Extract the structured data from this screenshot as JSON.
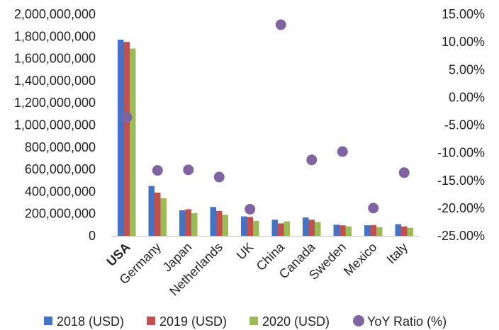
{
  "chart_data": {
    "type": "bar",
    "categories": [
      "USA",
      "Germany",
      "Japan",
      "Netherlands",
      "UK",
      "China",
      "Canada",
      "Sweden",
      "Mexico",
      "Italy"
    ],
    "series": [
      {
        "name": "2018 (USD)",
        "axis": "left",
        "kind": "bar",
        "color": "#4472C4",
        "values": [
          1770000000,
          450000000,
          230000000,
          260000000,
          175000000,
          145000000,
          165000000,
          100000000,
          95000000,
          105000000
        ]
      },
      {
        "name": "2019 (USD)",
        "axis": "left",
        "kind": "bar",
        "color": "#C0504D",
        "values": [
          1750000000,
          390000000,
          240000000,
          225000000,
          170000000,
          112000000,
          145000000,
          95000000,
          97000000,
          85000000
        ]
      },
      {
        "name": "2020 (USD)",
        "axis": "left",
        "kind": "bar",
        "color": "#9BBB59",
        "values": [
          1690000000,
          340000000,
          205000000,
          190000000,
          135000000,
          130000000,
          125000000,
          85000000,
          78000000,
          72000000
        ]
      },
      {
        "name": "YoY Ratio (%)",
        "axis": "right",
        "kind": "scatter",
        "color": "#8064A2",
        "values": [
          -3.6,
          -13.2,
          -13.1,
          -14.4,
          -20.2,
          13.1,
          -11.3,
          -9.8,
          -20.0,
          -13.6
        ]
      }
    ],
    "y_left": {
      "ylim": [
        0,
        2000000000
      ],
      "ticks": [
        "0",
        "200,000,000",
        "400,000,000",
        "600,000,000",
        "800,000,000",
        "1,000,000,000",
        "1,200,000,000",
        "1,400,000,000",
        "1,600,000,000",
        "1,800,000,000",
        "2,000,000,000"
      ]
    },
    "y_right": {
      "ylim": [
        -25,
        15
      ],
      "ticks": [
        "15.00%",
        "10.00%",
        "5.00%",
        "0.00%",
        "-5.00%",
        "-10.00%",
        "-15.00%",
        "-20.00%",
        "-25.00%"
      ]
    },
    "grid": false,
    "legend": "bottom"
  }
}
